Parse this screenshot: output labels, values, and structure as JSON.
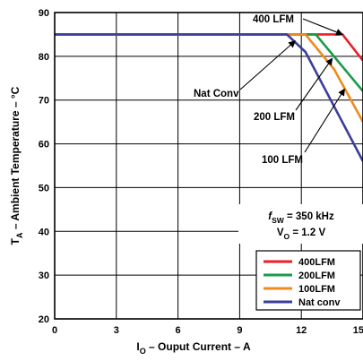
{
  "chart_data": {
    "type": "line",
    "xlabel": {
      "main": "I",
      "sub": "O",
      "rest": " – Ouput Current  – A"
    },
    "ylabel": {
      "main": "T",
      "sub": "A",
      "rest": " – Ambient Temperature – °C"
    },
    "xlim": [
      0,
      15
    ],
    "ylim": [
      20,
      90
    ],
    "xticks": [
      "0",
      "3",
      "6",
      "9",
      "12",
      "15"
    ],
    "yticks": [
      "20",
      "30",
      "40",
      "50",
      "60",
      "70",
      "80",
      "90"
    ],
    "grid": true,
    "conditions": [
      {
        "main": "f",
        "sub": "SW",
        "rest": " = 350 kHz"
      },
      {
        "main": "V",
        "sub": "O",
        "rest": " = 1.2 V"
      }
    ],
    "series": [
      {
        "name": "400LFM",
        "color": "#e8202a",
        "x": [
          0,
          14.0,
          15.0
        ],
        "y": [
          85,
          85,
          79
        ]
      },
      {
        "name": "200LFM",
        "color": "#1a9a4a",
        "x": [
          0,
          12.7,
          15.0
        ],
        "y": [
          85,
          85,
          72
        ]
      },
      {
        "name": "100LFM",
        "color": "#f08a1c",
        "x": [
          0,
          12.2,
          13.6,
          15.0
        ],
        "y": [
          85,
          85,
          77,
          65
        ]
      },
      {
        "name": "Nat conv",
        "color": "#3b3f9a",
        "x": [
          0,
          11.3,
          12.2,
          15.0
        ],
        "y": [
          85,
          85,
          81,
          56
        ]
      }
    ],
    "annotations": [
      {
        "text": "400 LFM",
        "target": [
          14.0,
          85
        ]
      },
      {
        "text": "200 LFM",
        "target": [
          13.5,
          79.5
        ]
      },
      {
        "text": "100 LFM",
        "target": [
          14.1,
          72.5
        ]
      },
      {
        "text": "Nat Conv",
        "target": [
          11.7,
          83.5
        ]
      }
    ],
    "legend_position": "bottom-right"
  }
}
